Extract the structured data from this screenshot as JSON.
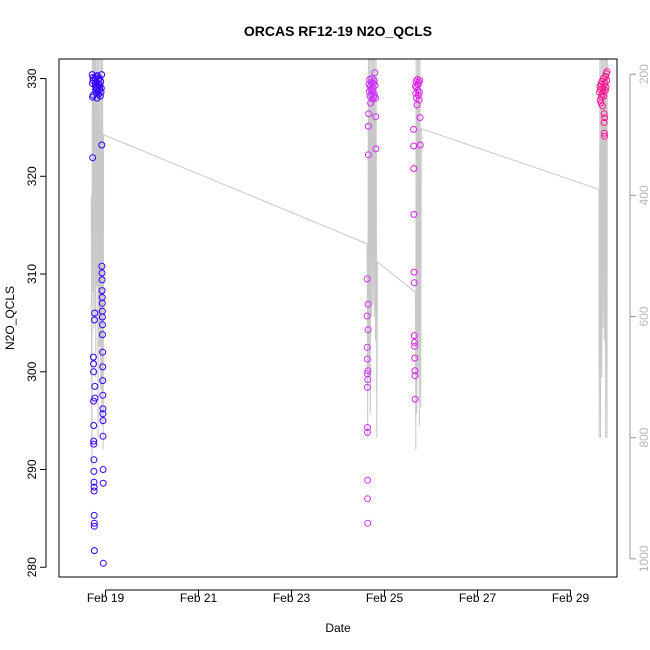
{
  "chart_data": {
    "type": "scatter",
    "title": "ORCAS RF12-19 N2O_QCLS",
    "xlabel": "Date",
    "ylabel": "N2O_QCLS",
    "x_ticks": [
      "Feb 19",
      "Feb 21",
      "Feb 23",
      "Feb 25",
      "Feb 27",
      "Feb 29"
    ],
    "x_tick_dates": [
      "2016-02-19",
      "2016-02-21",
      "2016-02-23",
      "2016-02-25",
      "2016-02-27",
      "2016-02-29"
    ],
    "xlim": [
      "2016-02-18 00:00",
      "2016-03-01 00:00"
    ],
    "y_ticks": [
      280,
      290,
      300,
      310,
      320,
      330
    ],
    "ylim": [
      279,
      332
    ],
    "y2_ticks": [
      200,
      400,
      600,
      800,
      1000
    ],
    "y2lim": [
      1030,
      175
    ],
    "grid": false,
    "marker": "open-circle",
    "colors": {
      "RF12": "#3300ff",
      "RF14": "#cc33ff",
      "RF15": "#dd22ee",
      "RF19": "#ff1493",
      "pressure_trace": "#c8c8c8",
      "right_axis": "#b8b8b8"
    },
    "series": [
      {
        "color_key": "RF12",
        "points": [
          [
            "2016-02-18 17:10",
            330.4
          ],
          [
            "2016-02-18 17:15",
            329.5
          ],
          [
            "2016-02-18 17:20",
            328.1
          ],
          [
            "2016-02-18 17:25",
            321.9
          ],
          [
            "2016-02-18 17:30",
            330.1
          ],
          [
            "2016-02-18 17:35",
            329.8
          ],
          [
            "2016-02-18 17:40",
            328.3
          ],
          [
            "2016-02-18 17:45",
            301.5
          ],
          [
            "2016-02-18 17:48",
            300.8
          ],
          [
            "2016-02-18 17:50",
            300.0
          ],
          [
            "2016-02-18 17:52",
            297.0
          ],
          [
            "2016-02-18 17:54",
            294.5
          ],
          [
            "2016-02-18 17:56",
            292.9
          ],
          [
            "2016-02-18 17:58",
            292.6
          ],
          [
            "2016-02-18 18:00",
            291.0
          ],
          [
            "2016-02-18 18:02",
            289.8
          ],
          [
            "2016-02-18 18:04",
            288.7
          ],
          [
            "2016-02-18 18:06",
            288.2
          ],
          [
            "2016-02-18 18:08",
            287.8
          ],
          [
            "2016-02-18 18:10",
            285.3
          ],
          [
            "2016-02-18 18:12",
            284.5
          ],
          [
            "2016-02-18 18:14",
            284.2
          ],
          [
            "2016-02-18 18:16",
            281.7
          ],
          [
            "2016-02-18 18:20",
            305.3
          ],
          [
            "2016-02-18 18:24",
            306.0
          ],
          [
            "2016-02-18 18:28",
            298.5
          ],
          [
            "2016-02-18 18:32",
            297.3
          ],
          [
            "2016-02-18 18:40",
            330.0
          ],
          [
            "2016-02-18 18:45",
            329.5
          ],
          [
            "2016-02-18 18:50",
            329.2
          ],
          [
            "2016-02-18 18:55",
            328.8
          ],
          [
            "2016-02-18 19:00",
            330.2
          ],
          [
            "2016-02-18 19:10",
            329.0
          ],
          [
            "2016-02-18 19:20",
            328.5
          ],
          [
            "2016-02-18 19:30",
            329.6
          ],
          [
            "2016-02-18 19:40",
            328.0
          ],
          [
            "2016-02-18 19:50",
            330.3
          ],
          [
            "2016-02-18 20:00",
            329.1
          ],
          [
            "2016-02-18 20:10",
            328.7
          ],
          [
            "2016-02-18 20:20",
            329.9
          ],
          [
            "2016-02-18 20:30",
            328.4
          ],
          [
            "2016-02-18 20:40",
            329.4
          ],
          [
            "2016-02-18 20:50",
            330.0
          ],
          [
            "2016-02-18 21:00",
            328.9
          ],
          [
            "2016-02-18 21:10",
            329.3
          ],
          [
            "2016-02-18 21:20",
            328.2
          ],
          [
            "2016-02-18 21:30",
            329.7
          ],
          [
            "2016-02-18 21:40",
            328.6
          ],
          [
            "2016-02-18 21:50",
            329.0
          ],
          [
            "2016-02-18 22:00",
            330.4
          ],
          [
            "2016-02-18 22:05",
            323.2
          ],
          [
            "2016-02-18 22:10",
            310.8
          ],
          [
            "2016-02-18 22:12",
            310.1
          ],
          [
            "2016-02-18 22:14",
            309.4
          ],
          [
            "2016-02-18 22:16",
            308.3
          ],
          [
            "2016-02-18 22:18",
            307.6
          ],
          [
            "2016-02-18 22:20",
            307.0
          ],
          [
            "2016-02-18 22:22",
            306.2
          ],
          [
            "2016-02-18 22:24",
            305.6
          ],
          [
            "2016-02-18 22:26",
            304.8
          ],
          [
            "2016-02-18 22:28",
            303.8
          ],
          [
            "2016-02-18 22:30",
            302.0
          ],
          [
            "2016-02-18 22:32",
            300.5
          ],
          [
            "2016-02-18 22:34",
            299.1
          ],
          [
            "2016-02-18 22:36",
            297.6
          ],
          [
            "2016-02-18 22:38",
            296.2
          ],
          [
            "2016-02-18 22:40",
            295.7
          ],
          [
            "2016-02-18 22:42",
            295.0
          ],
          [
            "2016-02-18 22:44",
            293.4
          ],
          [
            "2016-02-18 22:46",
            290.0
          ],
          [
            "2016-02-18 22:48",
            288.6
          ],
          [
            "2016-02-18 22:52",
            280.4
          ]
        ]
      },
      {
        "color_key": "RF14",
        "points": [
          [
            "2016-02-24 15:00",
            309.5
          ],
          [
            "2016-02-24 15:02",
            305.7
          ],
          [
            "2016-02-24 15:04",
            302.5
          ],
          [
            "2016-02-24 15:06",
            301.3
          ],
          [
            "2016-02-24 15:08",
            299.8
          ],
          [
            "2016-02-24 15:10",
            298.4
          ],
          [
            "2016-02-24 15:12",
            294.3
          ],
          [
            "2016-02-24 15:14",
            293.8
          ],
          [
            "2016-02-24 15:16",
            288.9
          ],
          [
            "2016-02-24 15:18",
            287.0
          ],
          [
            "2016-02-24 15:20",
            284.5
          ],
          [
            "2016-02-24 15:24",
            299.2
          ],
          [
            "2016-02-24 15:28",
            300.1
          ],
          [
            "2016-02-24 15:32",
            304.3
          ],
          [
            "2016-02-24 15:36",
            306.9
          ],
          [
            "2016-02-24 15:40",
            322.2
          ],
          [
            "2016-02-24 15:45",
            325.1
          ],
          [
            "2016-02-24 15:50",
            326.4
          ],
          [
            "2016-02-24 16:00",
            329.4
          ],
          [
            "2016-02-24 16:10",
            328.7
          ],
          [
            "2016-02-24 16:20",
            329.9
          ],
          [
            "2016-02-24 16:30",
            328.2
          ],
          [
            "2016-02-24 16:40",
            329.2
          ],
          [
            "2016-02-24 16:50",
            327.5
          ],
          [
            "2016-02-24 17:00",
            328.9
          ],
          [
            "2016-02-24 17:10",
            329.6
          ],
          [
            "2016-02-24 17:20",
            328.4
          ],
          [
            "2016-02-24 17:30",
            330.0
          ],
          [
            "2016-02-24 17:40",
            328.8
          ],
          [
            "2016-02-24 17:50",
            327.9
          ],
          [
            "2016-02-24 18:00",
            329.1
          ],
          [
            "2016-02-24 18:10",
            328.6
          ],
          [
            "2016-02-24 18:20",
            329.5
          ],
          [
            "2016-02-24 18:30",
            328.1
          ],
          [
            "2016-02-24 18:40",
            329.8
          ],
          [
            "2016-02-24 18:50",
            328.3
          ],
          [
            "2016-02-24 19:00",
            330.6
          ],
          [
            "2016-02-24 19:10",
            329.3
          ],
          [
            "2016-02-24 19:20",
            328.0
          ],
          [
            "2016-02-24 19:30",
            326.1
          ],
          [
            "2016-02-24 19:35",
            322.8
          ]
        ]
      },
      {
        "color_key": "RF15",
        "points": [
          [
            "2016-02-25 15:00",
            324.8
          ],
          [
            "2016-02-25 15:04",
            323.1
          ],
          [
            "2016-02-25 15:08",
            320.8
          ],
          [
            "2016-02-25 15:12",
            316.1
          ],
          [
            "2016-02-25 15:16",
            310.2
          ],
          [
            "2016-02-25 15:20",
            309.1
          ],
          [
            "2016-02-25 15:24",
            303.7
          ],
          [
            "2016-02-25 15:28",
            303.0
          ],
          [
            "2016-02-25 15:32",
            302.6
          ],
          [
            "2016-02-25 15:36",
            301.4
          ],
          [
            "2016-02-25 15:40",
            300.1
          ],
          [
            "2016-02-25 15:44",
            299.6
          ],
          [
            "2016-02-25 15:48",
            297.2
          ],
          [
            "2016-02-25 16:00",
            329.2
          ],
          [
            "2016-02-25 16:10",
            328.5
          ],
          [
            "2016-02-25 16:20",
            329.7
          ],
          [
            "2016-02-25 16:30",
            328.0
          ],
          [
            "2016-02-25 16:40",
            329.1
          ],
          [
            "2016-02-25 16:50",
            327.3
          ],
          [
            "2016-02-25 17:00",
            329.9
          ],
          [
            "2016-02-25 17:10",
            328.8
          ],
          [
            "2016-02-25 17:20",
            329.4
          ],
          [
            "2016-02-25 17:30",
            328.3
          ],
          [
            "2016-02-25 17:40",
            329.6
          ],
          [
            "2016-02-25 17:50",
            327.8
          ],
          [
            "2016-02-25 18:00",
            328.6
          ],
          [
            "2016-02-25 18:10",
            329.8
          ],
          [
            "2016-02-25 18:20",
            326.0
          ],
          [
            "2016-02-25 18:30",
            323.2
          ]
        ]
      },
      {
        "color_key": "RF19",
        "points": [
          [
            "2016-02-29 15:00",
            328.6
          ],
          [
            "2016-02-29 15:10",
            329.2
          ],
          [
            "2016-02-29 15:20",
            327.8
          ],
          [
            "2016-02-29 15:30",
            328.9
          ],
          [
            "2016-02-29 15:40",
            327.5
          ],
          [
            "2016-02-29 15:50",
            329.4
          ],
          [
            "2016-02-29 16:00",
            328.1
          ],
          [
            "2016-02-29 16:10",
            329.7
          ],
          [
            "2016-02-29 16:20",
            328.4
          ],
          [
            "2016-02-29 16:30",
            327.2
          ],
          [
            "2016-02-29 16:40",
            329.0
          ],
          [
            "2016-02-29 16:50",
            328.7
          ],
          [
            "2016-02-29 17:00",
            330.0
          ],
          [
            "2016-02-29 17:10",
            328.2
          ],
          [
            "2016-02-29 17:20",
            326.4
          ],
          [
            "2016-02-29 17:25",
            325.5
          ],
          [
            "2016-02-29 17:30",
            324.4
          ],
          [
            "2016-02-29 17:35",
            324.1
          ],
          [
            "2016-02-29 17:40",
            326.0
          ],
          [
            "2016-02-29 17:50",
            329.5
          ],
          [
            "2016-02-29 18:00",
            328.8
          ],
          [
            "2016-02-29 18:10",
            330.2
          ],
          [
            "2016-02-29 18:20",
            329.1
          ],
          [
            "2016-02-29 18:30",
            330.5
          ],
          [
            "2016-02-29 18:40",
            329.8
          ],
          [
            "2016-02-29 18:50",
            330.7
          ]
        ]
      }
    ],
    "pressure_trace": {
      "axis": "right",
      "points": [
        [
          "2016-02-18 16:40",
          400
        ],
        [
          "2016-02-18 16:45",
          620
        ],
        [
          "2016-02-18 16:50",
          740
        ],
        [
          "2016-02-18 17:00",
          850
        ],
        [
          "2016-02-18 17:10",
          175
        ],
        [
          "2016-02-18 17:20",
          300
        ],
        [
          "2016-02-18 17:30",
          175
        ],
        [
          "2016-02-18 17:40",
          560
        ],
        [
          "2016-02-18 17:50",
          175
        ],
        [
          "2016-02-18 18:00",
          620
        ],
        [
          "2016-02-18 18:10",
          175
        ],
        [
          "2016-02-18 18:20",
          500
        ],
        [
          "2016-02-18 18:30",
          175
        ],
        [
          "2016-02-18 18:40",
          600
        ],
        [
          "2016-02-18 18:50",
          175
        ],
        [
          "2016-02-18 19:00",
          700
        ],
        [
          "2016-02-18 19:10",
          175
        ],
        [
          "2016-02-18 19:30",
          550
        ],
        [
          "2016-02-18 19:50",
          175
        ],
        [
          "2016-02-18 20:10",
          800
        ],
        [
          "2016-02-18 20:30",
          175
        ],
        [
          "2016-02-18 20:50",
          650
        ],
        [
          "2016-02-18 21:10",
          175
        ],
        [
          "2016-02-18 21:30",
          720
        ],
        [
          "2016-02-18 21:50",
          175
        ],
        [
          "2016-02-18 22:10",
          780
        ],
        [
          "2016-02-18 22:30",
          175
        ],
        [
          "2016-02-18 22:50",
          820
        ],
        [
          "2016-02-18 23:00",
          300
        ],
        [
          "2016-02-24 15:00",
          480
        ],
        [
          "2016-02-24 15:20",
          800
        ],
        [
          "2016-02-24 15:40",
          175
        ],
        [
          "2016-02-24 16:00",
          700
        ],
        [
          "2016-02-24 16:20",
          175
        ],
        [
          "2016-02-24 16:40",
          760
        ],
        [
          "2016-02-24 17:00",
          175
        ],
        [
          "2016-02-24 17:20",
          600
        ],
        [
          "2016-02-24 17:40",
          175
        ],
        [
          "2016-02-24 18:00",
          580
        ],
        [
          "2016-02-24 18:20",
          175
        ],
        [
          "2016-02-24 18:40",
          600
        ],
        [
          "2016-02-24 19:00",
          175
        ],
        [
          "2016-02-24 19:20",
          640
        ],
        [
          "2016-02-24 19:40",
          175
        ],
        [
          "2016-02-24 20:00",
          800
        ],
        [
          "2016-02-24 20:20",
          510
        ],
        [
          "2016-02-25 16:00",
          560
        ],
        [
          "2016-02-25 16:10",
          820
        ],
        [
          "2016-02-25 16:20",
          175
        ],
        [
          "2016-02-25 16:40",
          760
        ],
        [
          "2016-02-25 17:00",
          175
        ],
        [
          "2016-02-25 17:20",
          700
        ],
        [
          "2016-02-25 17:40",
          175
        ],
        [
          "2016-02-25 18:00",
          780
        ],
        [
          "2016-02-25 18:20",
          175
        ],
        [
          "2016-02-25 18:40",
          750
        ],
        [
          "2016-02-25 19:00",
          290
        ],
        [
          "2016-02-29 14:40",
          390
        ],
        [
          "2016-02-29 14:50",
          800
        ],
        [
          "2016-02-29 15:10",
          175
        ],
        [
          "2016-02-29 15:30",
          800
        ],
        [
          "2016-02-29 15:50",
          175
        ],
        [
          "2016-02-29 16:10",
          700
        ],
        [
          "2016-02-29 16:30",
          175
        ],
        [
          "2016-02-29 16:50",
          620
        ],
        [
          "2016-02-29 17:10",
          175
        ],
        [
          "2016-02-29 17:30",
          640
        ],
        [
          "2016-02-29 17:50",
          175
        ],
        [
          "2016-02-29 18:10",
          800
        ],
        [
          "2016-02-29 18:30",
          175
        ],
        [
          "2016-02-29 18:50",
          800
        ],
        [
          "2016-02-29 19:00",
          175
        ]
      ]
    }
  }
}
